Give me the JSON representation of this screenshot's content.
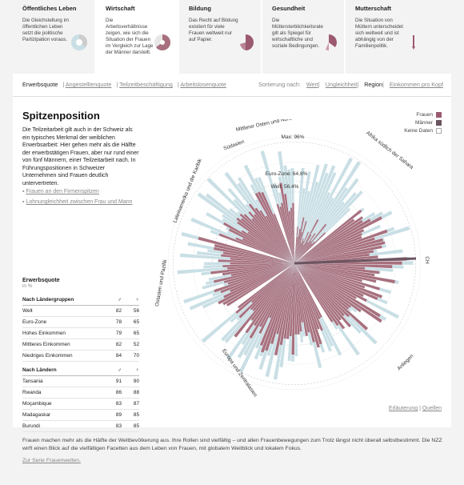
{
  "cards": [
    {
      "title": "Öffentliches Leben",
      "desc": "Die Gleichstellung im öffentlichen Leben setzt die politische Partizipation voraus.",
      "icon": "pie-icon-public"
    },
    {
      "title": "Wirtschaft",
      "desc": "Die Arbeitsverhältnisse zeigen, wie sich die Situation der Frauen im Vergleich zur Lage der Männer darstellt.",
      "icon": "pie-icon-economy"
    },
    {
      "title": "Bildung",
      "desc": "Das Recht auf Bildung existiert für viele Frauen weltweit nur auf Papier.",
      "icon": "pie-icon-education"
    },
    {
      "title": "Gesundheit",
      "desc": "Die Müttersterblichkeitsrate gilt als Spiegel für wirtschaftliche und soziale Bedingungen.",
      "icon": "pie-icon-health"
    },
    {
      "title": "Mutterschaft",
      "desc": "Die Situation von Müttern unterscheidet sich weltweit und ist abhängig von der Familienpolitik.",
      "icon": "pie-icon-maternity"
    }
  ],
  "tabs": {
    "left": [
      "Erwerbsquote",
      "Angestelltenquote",
      "Teilzeitbeschäftigung",
      "Arbeitslosenquote"
    ],
    "sort_label": "Sortierung nach:",
    "right": [
      "Wert",
      "Ungleichheit",
      "Region",
      "Einkommen pro Kopf"
    ]
  },
  "main": {
    "title": "Spitzenposition",
    "intro": "Die Teilzeitarbeit gilt auch in der Schweiz als ein typisches Merkmal der weiblichen Erwerbsarbeit: Hier gehen mehr als die Hälfte der erwerbstätigen Frauen, aber nur rund einer von fünf Männern, einer Teilzeitarbeit nach. In Führungspositionen in Schweizer Unternehmen sind Frauen deutlich untervertreten.",
    "links": [
      "Frauen an den Firmenspitzen",
      "Lohnungleichheit zwischen Frau und Mann"
    ]
  },
  "legend": {
    "frauen": "Frauen",
    "maenner": "Männer",
    "keine": "Keine Daten"
  },
  "colors": {
    "women": "#a8707e",
    "men": "#c9dfe5",
    "accent": "#9b5a70"
  },
  "table": {
    "title": "Erwerbsquote",
    "subtitle": "in %",
    "group_header": "Nach Ländergruppen",
    "male_sym": "♂",
    "female_sym": "♀",
    "groups": [
      {
        "name": "Welt",
        "m": "82",
        "f": "56"
      },
      {
        "name": "Euro-Zone",
        "m": "78",
        "f": "65"
      },
      {
        "name": "Hohes Einkommen",
        "m": "79",
        "f": "65"
      },
      {
        "name": "Mittleres Einkommen",
        "m": "82",
        "f": "52"
      },
      {
        "name": "Niedriges Einkommen",
        "m": "84",
        "f": "70"
      }
    ],
    "country_header": "Nach Ländern",
    "countries": [
      {
        "name": "Tansania",
        "m": "91",
        "f": "90"
      },
      {
        "name": "Rwanda",
        "m": "86",
        "f": "88"
      },
      {
        "name": "Moçambique",
        "m": "83",
        "f": "87"
      },
      {
        "name": "Madagaskar",
        "m": "89",
        "f": "85"
      },
      {
        "name": "Burundi",
        "m": "83",
        "f": "85"
      }
    ]
  },
  "chart_data": {
    "type": "bar",
    "regions": [
      "Mittlerer Osten und Nordafrika",
      "Afrika südlich der Sahara",
      "Europa und Zentralasien",
      "Ostasien und Pazifik",
      "Lateinamerika und die Karibik",
      "Südasien"
    ],
    "annotations": {
      "max": "Max: 96%",
      "euro": "Euro-Zone: 64.8%",
      "welt": "Welt: 56.4%",
      "ch": "CH"
    }
  },
  "footer": {
    "text": "Frauen machen mehr als die Hälfte der Weltbevölkerung aus. Ihre Rollen sind vielfältig – und allen Frauenbewegungen zum Trotz längst nicht überall selbstbestimmt. Die NZZ wirft einen Blick auf die vielfältigen Facetten aus dem Leben von Frauen, mit globalem Weitblick und lokalem Fokus.",
    "more": "Zur Serie Frauenwelten."
  },
  "foot_links": {
    "erl": "Erläuterung",
    "sep": "|",
    "quellen": "Quellen"
  }
}
